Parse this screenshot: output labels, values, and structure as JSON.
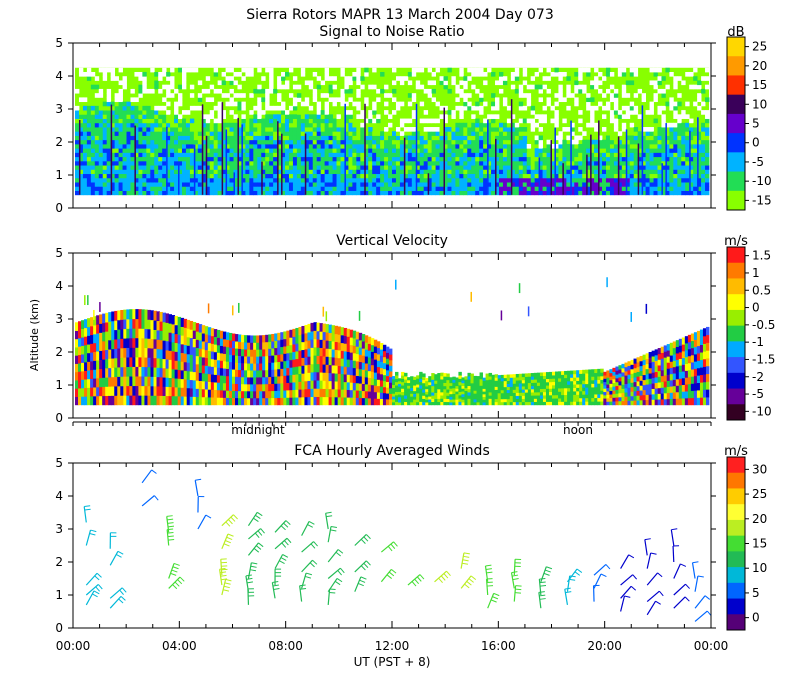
{
  "figure": {
    "title": "Sierra Rotors  MAPR 13 March 2004 Day 073",
    "xlabel": "UT  (PST + 8)"
  },
  "chart_data": [
    {
      "type": "heatmap",
      "title": "Signal to Noise Ratio",
      "ylabel": "",
      "ylim": [
        0,
        5
      ],
      "yticks": [
        "0",
        "1",
        "2",
        "3",
        "4",
        "5"
      ],
      "colorbar": {
        "unit": "dB",
        "labels": [
          "25",
          "20",
          "15",
          "10",
          "5",
          "0",
          "-5",
          "-10",
          "-15"
        ],
        "colors": [
          "#ffd700",
          "#ff9a00",
          "#ff3000",
          "#3a005a",
          "#6600cc",
          "#0033ff",
          "#00b3ff",
          "#22dd55",
          "#88ff00"
        ]
      },
      "x_range_hours": [
        0,
        24
      ],
      "top_altitude_km": 4.25,
      "bottom_altitude_km": 0.4
    },
    {
      "type": "heatmap",
      "title": "Vertical Velocity",
      "ylabel": "Altitude (km)",
      "ylim": [
        0,
        5
      ],
      "yticks": [
        "0",
        "1",
        "2",
        "3",
        "4",
        "5"
      ],
      "day_markers": [
        "midnight",
        "noon"
      ],
      "colorbar": {
        "unit": "m/s",
        "labels": [
          "1.5",
          "1",
          "0.5",
          "0",
          "-0.5",
          "-1",
          "-1.5",
          "-2",
          "-5",
          "-10"
        ],
        "colors": [
          "#ff1a1a",
          "#ff7a00",
          "#ffbb00",
          "#ffff00",
          "#99ee00",
          "#22cc44",
          "#00aaff",
          "#3355ff",
          "#0000cc",
          "#660099",
          "#330022"
        ]
      },
      "x_range_hours": [
        0,
        24
      ],
      "bottom_altitude_km": 0.4
    },
    {
      "type": "scatter",
      "subtype": "wind-barbs",
      "title": "FCA Hourly Averaged Winds",
      "ylim": [
        0,
        5
      ],
      "yticks": [
        "0",
        "1",
        "2",
        "3",
        "4",
        "5"
      ],
      "x_ticks": [
        "00:00",
        "04:00",
        "08:00",
        "12:00",
        "16:00",
        "20:00",
        "00:00"
      ],
      "colorbar": {
        "unit": "m/s",
        "labels": [
          "30",
          "25",
          "20",
          "15",
          "10",
          "5",
          "0"
        ],
        "colors": [
          "#ff2020",
          "#ff7700",
          "#ffcc00",
          "#ffff33",
          "#bbee22",
          "#44dd33",
          "#22bb55",
          "#00b8d8",
          "#0066ff",
          "#0000cc",
          "#550077"
        ]
      },
      "hourly_columns": [
        {
          "hour": 0.5,
          "speed": 7,
          "alts": [
            0.7,
            1.0,
            1.3,
            2.5,
            3.2
          ]
        },
        {
          "hour": 1.4,
          "speed": 6,
          "alts": [
            0.6,
            0.9,
            1.9,
            2.4
          ]
        },
        {
          "hour": 2.6,
          "speed": 5,
          "alts": [
            3.7,
            4.4
          ]
        },
        {
          "hour": 3.6,
          "speed": 14,
          "alts": [
            1.2,
            1.5,
            2.5,
            2.9
          ]
        },
        {
          "hour": 4.7,
          "speed": 4,
          "alts": [
            3.0,
            3.5,
            4.0
          ]
        },
        {
          "hour": 5.6,
          "speed": 17,
          "alts": [
            1.0,
            1.3,
            1.6,
            2.4,
            3.1
          ]
        },
        {
          "hour": 6.6,
          "speed": 11,
          "alts": [
            0.7,
            1.1,
            1.5,
            2.2,
            2.7,
            3.1
          ]
        },
        {
          "hour": 7.6,
          "speed": 10,
          "alts": [
            0.9,
            1.3,
            1.8,
            2.4,
            2.9
          ]
        },
        {
          "hour": 8.6,
          "speed": 9,
          "alts": [
            0.8,
            1.2,
            1.7,
            2.3,
            2.8
          ]
        },
        {
          "hour": 9.6,
          "speed": 9,
          "alts": [
            0.7,
            1.1,
            1.5,
            2.0,
            2.6,
            3.0
          ]
        },
        {
          "hour": 10.6,
          "speed": 10,
          "alts": [
            1.1,
            1.7,
            2.5
          ]
        },
        {
          "hour": 11.6,
          "speed": 13,
          "alts": [
            1.4,
            2.3
          ]
        },
        {
          "hour": 12.6,
          "speed": 14,
          "alts": [
            1.3
          ]
        },
        {
          "hour": 13.6,
          "speed": 15,
          "alts": [
            1.4
          ]
        },
        {
          "hour": 14.6,
          "speed": 16,
          "alts": [
            1.2,
            1.8
          ]
        },
        {
          "hour": 15.6,
          "speed": 12,
          "alts": [
            0.6,
            1.0,
            1.4
          ]
        },
        {
          "hour": 16.6,
          "speed": 13,
          "alts": [
            0.8,
            1.2,
            1.6
          ]
        },
        {
          "hour": 17.6,
          "speed": 11,
          "alts": [
            0.6,
            1.0,
            1.4
          ]
        },
        {
          "hour": 18.6,
          "speed": 8,
          "alts": [
            0.7,
            1.1,
            1.4
          ]
        },
        {
          "hour": 19.6,
          "speed": 5,
          "alts": [
            0.8,
            1.2,
            1.6
          ]
        },
        {
          "hour": 20.6,
          "speed": 3,
          "alts": [
            0.5,
            0.9,
            1.3,
            1.8
          ]
        },
        {
          "hour": 21.6,
          "speed": 2,
          "alts": [
            0.4,
            0.8,
            1.3,
            1.8,
            2.2
          ]
        },
        {
          "hour": 22.6,
          "speed": 3,
          "alts": [
            0.6,
            1.0,
            1.5,
            2.0,
            2.5
          ]
        },
        {
          "hour": 23.4,
          "speed": 4,
          "alts": [
            0.2,
            0.6,
            1.1,
            1.5
          ]
        }
      ]
    }
  ]
}
